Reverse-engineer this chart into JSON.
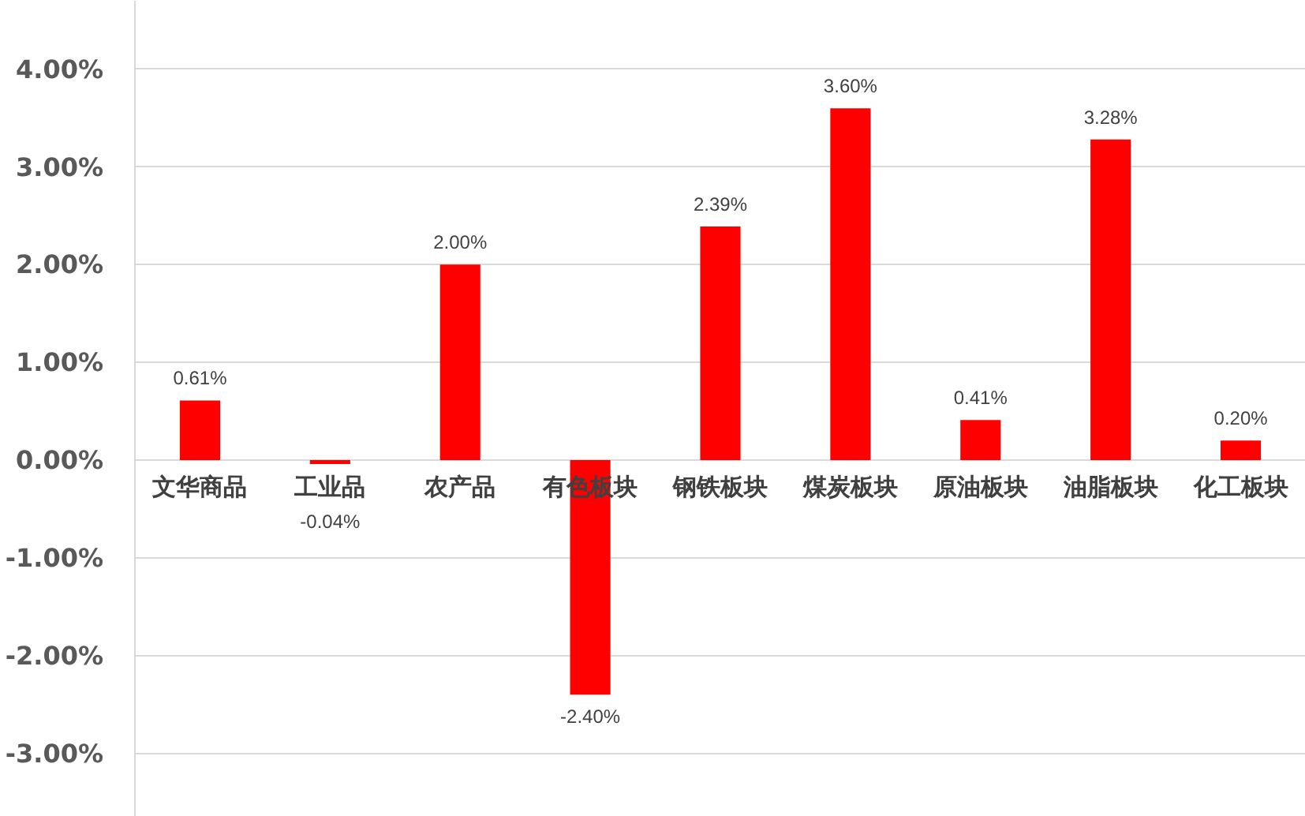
{
  "chart_data": {
    "type": "bar",
    "categories": [
      "文华商品",
      "工业品",
      "农产品",
      "有色板块",
      "钢铁板块",
      "煤炭板块",
      "原油板块",
      "油脂板块",
      "化工板块"
    ],
    "values": [
      0.61,
      -0.04,
      2.0,
      -2.4,
      2.39,
      3.6,
      0.41,
      3.28,
      0.2
    ],
    "color": "#ff0000",
    "value_labels": [
      "0.61%",
      "-0.04%",
      "2.00%",
      "-2.40%",
      "2.39%",
      "3.60%",
      "0.41%",
      "3.28%",
      "0.20%"
    ],
    "ylim": [
      -3.65,
      4.7
    ],
    "yticks": [
      {
        "value": -3,
        "label": "-3.00%"
      },
      {
        "value": -2,
        "label": "-2.00%"
      },
      {
        "value": -1,
        "label": "-1.00%"
      },
      {
        "value": 0,
        "label": "0.00%"
      },
      {
        "value": 1,
        "label": "1.00%"
      },
      {
        "value": 2,
        "label": "2.00%"
      },
      {
        "value": 3,
        "label": "3.00%"
      },
      {
        "value": 4,
        "label": "4.00%"
      }
    ],
    "grid": "y"
  }
}
